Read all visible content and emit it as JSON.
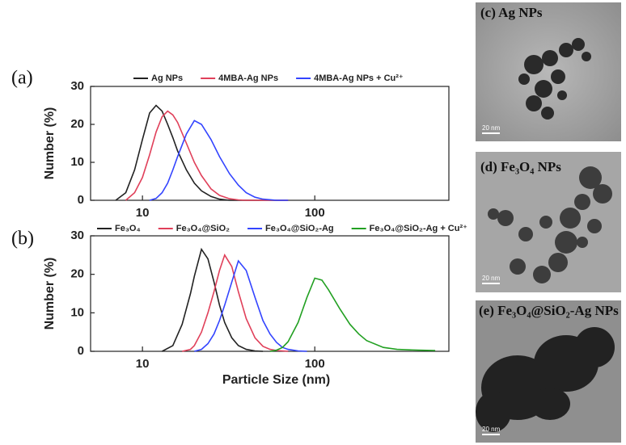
{
  "chart_data": [
    {
      "type": "line",
      "panel_label": "(a)",
      "ylabel": "Number (%)",
      "log_x": true,
      "xlim": [
        5,
        600
      ],
      "ylim": [
        0,
        30
      ],
      "xticks": [
        10,
        100
      ],
      "yticks": [
        0,
        10,
        20,
        30
      ],
      "x": [
        7,
        8,
        9,
        10,
        11,
        12,
        13,
        14,
        15,
        16,
        18,
        20,
        22,
        25,
        28,
        32,
        36,
        40,
        45,
        50,
        60,
        70
      ],
      "series": [
        {
          "name": "Ag NPs",
          "color": "#222222",
          "values": [
            0,
            2,
            8,
            16,
            23,
            25,
            23.5,
            20,
            16.5,
            13,
            8,
            4.5,
            2.5,
            1,
            0.3,
            0,
            0,
            0,
            0,
            0,
            0,
            0
          ]
        },
        {
          "name": "4MBA-Ag NPs",
          "color": "#e0405a",
          "values": [
            null,
            0,
            2,
            6,
            12,
            18,
            22,
            23.5,
            22.5,
            20.5,
            15,
            10,
            6.5,
            3,
            1.3,
            0.4,
            0.1,
            0,
            0,
            0,
            0,
            0
          ]
        },
        {
          "name": "4MBA-Ag NPs + Cu²⁺",
          "color": "#3344ff",
          "values": [
            null,
            null,
            null,
            null,
            0,
            0.5,
            2,
            4.5,
            8,
            11.5,
            17.5,
            21,
            20,
            16,
            11.5,
            7,
            4,
            2,
            0.8,
            0.3,
            0,
            0
          ]
        }
      ]
    },
    {
      "type": "line",
      "panel_label": "(b)",
      "xlabel": "Particle Size (nm)",
      "ylabel": "Number (%)",
      "log_x": true,
      "xlim": [
        5,
        600
      ],
      "ylim": [
        0,
        30
      ],
      "xticks": [
        10,
        100
      ],
      "yticks": [
        0,
        10,
        20,
        30
      ],
      "x": [
        13,
        15,
        17,
        19,
        20,
        22,
        24,
        26,
        28,
        30,
        33,
        36,
        40,
        45,
        50,
        55,
        60,
        65,
        70,
        80,
        90,
        100,
        110,
        120,
        140,
        160,
        180,
        200,
        250,
        300,
        400,
        500
      ],
      "series": [
        {
          "name": "Fe₃O₄",
          "color": "#222222",
          "values": [
            0,
            1.5,
            7,
            15,
            19.5,
            26.5,
            24,
            18,
            12,
            7.5,
            3.5,
            1.5,
            0.5,
            0.1,
            0,
            null,
            null,
            null,
            null,
            null,
            null,
            null,
            null,
            null,
            null,
            null,
            null,
            null,
            null,
            null,
            null,
            null
          ]
        },
        {
          "name": "Fe₃O₄@SiO₂",
          "color": "#e0405a",
          "values": [
            null,
            null,
            0,
            0.5,
            1.5,
            5,
            10,
            15.5,
            21,
            25,
            22,
            15.5,
            8.5,
            3.5,
            1.3,
            0.5,
            0.2,
            0.1,
            0,
            null,
            null,
            null,
            null,
            null,
            null,
            null,
            null,
            null,
            null,
            null,
            null,
            null
          ]
        },
        {
          "name": "Fe₃O₄@SiO₂-Ag",
          "color": "#3344ff",
          "values": [
            null,
            null,
            null,
            null,
            0,
            0.5,
            2,
            4.5,
            8,
            12,
            18,
            23.5,
            21,
            14,
            8,
            4.5,
            2.3,
            1,
            0.5,
            0.1,
            0,
            null,
            null,
            null,
            null,
            null,
            null,
            null,
            null,
            null,
            null,
            null
          ]
        },
        {
          "name": "Fe₃O₄@SiO₂-Ag + Cu²⁺",
          "color": "#22a022",
          "values": [
            null,
            null,
            null,
            null,
            null,
            null,
            null,
            null,
            null,
            null,
            null,
            null,
            null,
            null,
            null,
            0,
            0.3,
            1,
            2.5,
            7.5,
            14,
            19,
            18.5,
            16,
            11,
            7,
            4.5,
            2.8,
            1,
            0.5,
            0.3,
            0.2
          ]
        }
      ]
    }
  ],
  "images": [
    {
      "label": "(c) Ag NPs",
      "scale": "20 nm"
    },
    {
      "label": "(d) Fe₃O₄ NPs",
      "scale": "20 nm"
    },
    {
      "label": "(e) Fe₃O₄@SiO₂-Ag NPs",
      "scale": "20 nm"
    }
  ]
}
